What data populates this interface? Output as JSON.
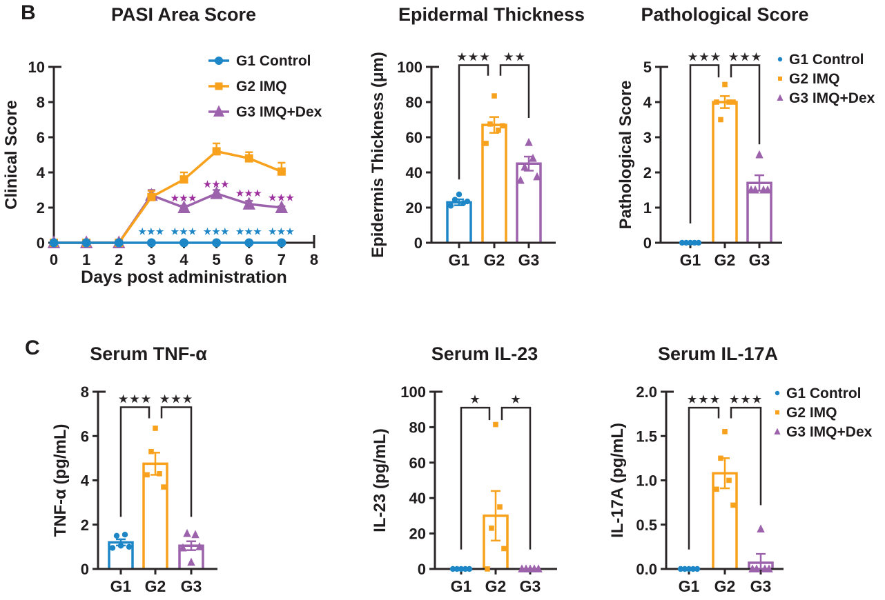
{
  "figure": {
    "panel_b": "B",
    "panel_c": "C"
  },
  "colors": {
    "blue": "#1d86c6",
    "orange": "#f7a11c",
    "purple": "#9c62ab",
    "star_purple": "#9d2f9e",
    "axis": "#2a2627",
    "text": "#1f1c1d"
  },
  "groups": [
    {
      "label": "G1 Control",
      "short": "G1",
      "color": "blue",
      "marker": "circle"
    },
    {
      "label": "G2 IMQ",
      "short": "G2",
      "color": "orange",
      "marker": "square"
    },
    {
      "label": "G3 IMQ+Dex",
      "short": "G3",
      "color": "purple",
      "marker": "triangle"
    }
  ],
  "chart_data": [
    {
      "type": "line",
      "panel": "B",
      "title": "PASI Area Score",
      "xlabel": "Days post administration",
      "ylabel": "Clinical Score",
      "xlim": [
        0,
        8
      ],
      "ylim": [
        0,
        10
      ],
      "xticks": [
        0,
        1,
        2,
        3,
        4,
        5,
        6,
        7,
        8
      ],
      "yticks": [
        0,
        2,
        4,
        6,
        8,
        10
      ],
      "grid": false,
      "legend_position": "top-right-inside",
      "legend": [
        "G1 Control",
        "G2 IMQ",
        "G3 IMQ+Dex"
      ],
      "x": [
        0,
        1,
        2,
        3,
        4,
        5,
        6,
        7
      ],
      "draw_order": [
        2,
        1,
        0
      ],
      "series": [
        {
          "name": "G1 Control",
          "color": "blue",
          "marker": "circle",
          "values": [
            0,
            0,
            0,
            0,
            0,
            0,
            0,
            0
          ],
          "errors": [
            0,
            0,
            0,
            0,
            0,
            0,
            0,
            0
          ]
        },
        {
          "name": "G2 IMQ",
          "color": "orange",
          "marker": "square",
          "values": [
            0,
            0,
            0,
            2.6,
            3.6,
            5.2,
            4.8,
            4.05
          ],
          "errors": [
            0,
            0,
            0,
            0.35,
            0.4,
            0.45,
            0.35,
            0.5
          ]
        },
        {
          "name": "G3 IMQ+Dex",
          "color": "purple",
          "marker": "triangle",
          "values": [
            0,
            0,
            0,
            2.7,
            2.0,
            2.8,
            2.2,
            2.0
          ],
          "errors": [
            0,
            0,
            0,
            0.3,
            0.12,
            0.2,
            0.18,
            0.08
          ]
        }
      ],
      "significance": [
        {
          "color": "blue",
          "stars": "***",
          "points": [
            [
              3,
              0.62
            ],
            [
              4,
              0.62
            ],
            [
              5,
              0.62
            ],
            [
              6,
              0.62
            ],
            [
              7,
              0.62
            ]
          ]
        },
        {
          "color": "star_purple",
          "stars": "***",
          "points": [
            [
              4,
              2.52
            ],
            [
              5,
              3.32
            ],
            [
              6,
              2.8
            ],
            [
              7,
              2.55
            ]
          ]
        }
      ]
    },
    {
      "type": "bar",
      "panel": "B",
      "title": "Epidermal Thickness",
      "ylabel": "Epidermis Thickness (μm)",
      "categories": [
        "G1",
        "G2",
        "G3"
      ],
      "colors": [
        "blue",
        "orange",
        "purple"
      ],
      "markers": [
        "circle",
        "square",
        "triangle"
      ],
      "values": [
        23,
        67,
        45
      ],
      "errors": [
        1.7,
        4.5,
        4
      ],
      "points": [
        [
          21,
          24.5,
          27.5,
          22.5,
          23.5
        ],
        [
          56.5,
          67.5,
          83.5,
          64,
          66.5
        ],
        [
          35.5,
          43,
          57,
          48,
          37.5
        ]
      ],
      "ylim": [
        0,
        100
      ],
      "yticks": [
        0,
        20,
        40,
        60,
        80,
        100
      ],
      "grid": false,
      "brackets": [
        {
          "from": 0,
          "to": 1,
          "top": 101,
          "leg_from": 36,
          "leg_to": 95,
          "label": "***"
        },
        {
          "from": 1,
          "to": 2,
          "top": 101,
          "leg_from": 95,
          "leg_to": 71,
          "label": "**"
        }
      ]
    },
    {
      "type": "bar",
      "panel": "B",
      "title": "Pathological Score",
      "ylabel": "Pathological Score",
      "categories": [
        "G1",
        "G2",
        "G3"
      ],
      "colors": [
        "blue",
        "orange",
        "purple"
      ],
      "markers": [
        "circle",
        "square",
        "triangle"
      ],
      "values": [
        0,
        4.0,
        1.7
      ],
      "errors": [
        0,
        0.17,
        0.22
      ],
      "points": [
        [
          0,
          0,
          0,
          0,
          0
        ],
        [
          4,
          3.5,
          4.5,
          4,
          4
        ],
        [
          1.5,
          1.5,
          2.5,
          1.5,
          1.5
        ]
      ],
      "ylim": [
        0,
        5
      ],
      "yticks": [
        0,
        1,
        2,
        3,
        4,
        5
      ],
      "grid": false,
      "legend_position": "right-outside",
      "legend": [
        "G1 Control",
        "G2 IMQ",
        "G3 IMQ+Dex"
      ],
      "brackets": [
        {
          "from": 0,
          "to": 1,
          "top": 5.05,
          "leg_from": 0.55,
          "leg_to": 4.7,
          "label": "***"
        },
        {
          "from": 1,
          "to": 2,
          "top": 5.05,
          "leg_from": 4.7,
          "leg_to": 2.8,
          "label": "***"
        }
      ]
    },
    {
      "type": "bar",
      "panel": "C",
      "title": "Serum TNF-α",
      "ylabel": "TNF-α (pg/mL)",
      "categories": [
        "G1",
        "G2",
        "G3"
      ],
      "colors": [
        "blue",
        "orange",
        "purple"
      ],
      "markers": [
        "circle",
        "square",
        "triangle"
      ],
      "values": [
        1.2,
        4.75,
        1.05
      ],
      "errors": [
        0.14,
        0.5,
        0.2
      ],
      "points": [
        [
          0.95,
          1.5,
          1.05,
          1.55,
          1.0
        ],
        [
          4.25,
          5.3,
          6.35,
          4.3,
          3.7
        ],
        [
          0.95,
          1.6,
          0.3,
          1.55,
          1.0
        ]
      ],
      "ylim": [
        0,
        8
      ],
      "yticks": [
        0,
        2,
        4,
        6,
        8
      ],
      "grid": false,
      "brackets": [
        {
          "from": 0,
          "to": 1,
          "top": 7.3,
          "leg_from": 2.35,
          "leg_to": 6.8,
          "label": "***"
        },
        {
          "from": 1,
          "to": 2,
          "top": 7.3,
          "leg_from": 6.8,
          "leg_to": 2.35,
          "label": "***"
        }
      ]
    },
    {
      "type": "bar",
      "panel": "C",
      "title": "Serum IL-23",
      "ylabel": "IL-23 (pg/mL)",
      "categories": [
        "G1",
        "G2",
        "G3"
      ],
      "colors": [
        "blue",
        "orange",
        "purple"
      ],
      "markers": [
        "circle",
        "square",
        "triangle"
      ],
      "values": [
        0,
        30,
        0
      ],
      "errors": [
        0,
        14,
        0
      ],
      "points": [
        [
          0,
          0,
          0,
          0,
          0
        ],
        [
          0,
          23,
          81.5,
          35,
          11.5
        ],
        [
          0,
          0,
          0,
          0,
          0
        ]
      ],
      "ylim": [
        0,
        100
      ],
      "yticks": [
        0,
        20,
        40,
        60,
        80,
        100
      ],
      "grid": false,
      "brackets": [
        {
          "from": 0,
          "to": 1,
          "top": 91,
          "leg_from": 11,
          "leg_to": 84,
          "label": "*"
        },
        {
          "from": 1,
          "to": 2,
          "top": 91,
          "leg_from": 84,
          "leg_to": 11,
          "label": "*"
        }
      ]
    },
    {
      "type": "bar",
      "panel": "C",
      "title": "Serum IL-17A",
      "ylabel": "IL-17A (pg/mL)",
      "categories": [
        "G1",
        "G2",
        "G3"
      ],
      "colors": [
        "blue",
        "orange",
        "purple"
      ],
      "markers": [
        "circle",
        "square",
        "triangle"
      ],
      "values": [
        0,
        1.08,
        0.07
      ],
      "errors": [
        0,
        0.17,
        0.1
      ],
      "points": [
        [
          0,
          0,
          0,
          0,
          0
        ],
        [
          0.9,
          1.25,
          1.55,
          1.0,
          0.72
        ],
        [
          0,
          0,
          0.45,
          0,
          0
        ]
      ],
      "ylim": [
        0,
        2
      ],
      "yticks": [
        0,
        0.5,
        1.0,
        1.5,
        2.0
      ],
      "ytick_labels": [
        "0.0",
        "0.5",
        "1.0",
        "1.5",
        "2.0"
      ],
      "grid": false,
      "legend_position": "right-outside",
      "legend": [
        "G1 Control",
        "G2 IMQ",
        "G3 IMQ+Dex"
      ],
      "brackets": [
        {
          "from": 0,
          "to": 1,
          "top": 1.82,
          "leg_from": 0.22,
          "leg_to": 1.7,
          "label": "***"
        },
        {
          "from": 1,
          "to": 2,
          "top": 1.82,
          "leg_from": 1.7,
          "leg_to": 0.72,
          "label": "***"
        }
      ]
    }
  ]
}
